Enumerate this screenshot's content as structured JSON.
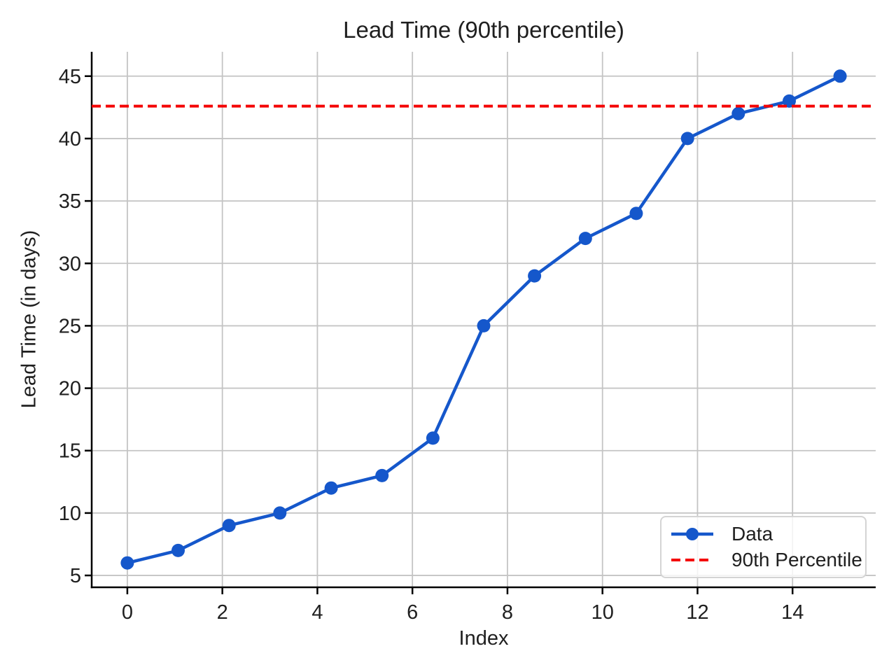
{
  "chart_data": {
    "type": "line",
    "title": "Lead Time (90th percentile)",
    "xlabel": "Index",
    "ylabel": "Lead Time (in days)",
    "x": [
      0,
      1.07,
      2.14,
      3.21,
      4.29,
      5.36,
      6.43,
      7.5,
      8.57,
      9.64,
      10.71,
      11.79,
      12.86,
      13.93,
      15
    ],
    "series": [
      {
        "name": "Data",
        "values": [
          6,
          7,
          9,
          10,
          12,
          13,
          16,
          25,
          29,
          32,
          34,
          40,
          42,
          43,
          45
        ],
        "color": "#1557cb",
        "style": "solid",
        "marker": "circle"
      }
    ],
    "reference_lines": [
      {
        "name": "90th Percentile",
        "orientation": "horizontal",
        "value": 42.6,
        "color": "#f40404",
        "style": "dashed"
      }
    ],
    "xlim": [
      -0.75,
      15.75
    ],
    "ylim": [
      4.05,
      46.95
    ],
    "xticks": [
      0,
      2,
      4,
      6,
      8,
      10,
      12,
      14
    ],
    "yticks": [
      5,
      10,
      15,
      20,
      25,
      30,
      35,
      40,
      45
    ],
    "grid": true,
    "legend": {
      "position": "lower right",
      "entries": [
        "Data",
        "90th Percentile"
      ]
    },
    "colors": {
      "grid": "#c4c4c4",
      "axis": "#000000",
      "text": "#1f1f1f",
      "background": "#ffffff"
    }
  }
}
